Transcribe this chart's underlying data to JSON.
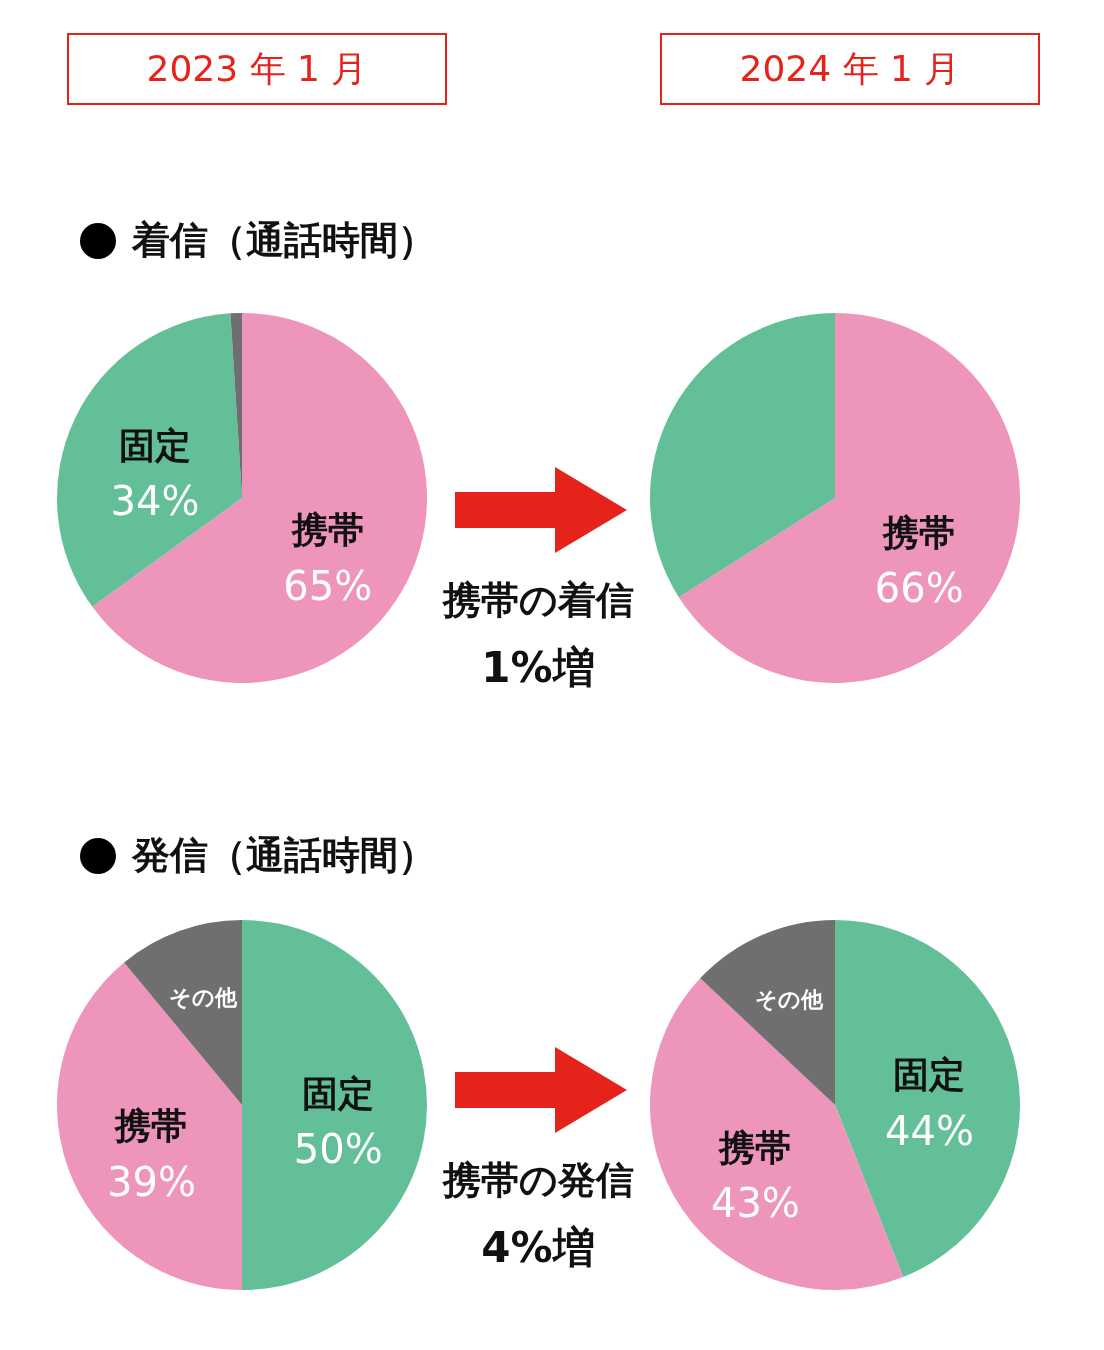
{
  "chart_data": [
    {
      "type": "pie",
      "title": "2023 年 1 月",
      "subtitle": "着信（通話時間）",
      "categories": [
        "携帯",
        "固定",
        null
      ],
      "values": [
        65,
        34,
        1
      ],
      "colors": [
        "#ee95bb",
        "#62bf98",
        "#6f6f6f"
      ],
      "value_labels": [
        "65%",
        "34%",
        null
      ],
      "legend": false
    },
    {
      "type": "pie",
      "title": "2024 年 1 月",
      "categories": [
        "携帯",
        null
      ],
      "values": [
        66,
        34
      ],
      "colors": [
        "#ee95bb",
        "#62bf98"
      ],
      "value_labels": [
        "66%",
        null
      ],
      "legend": false,
      "annotations": [
        "携帯の着信",
        "1%増"
      ]
    },
    {
      "type": "pie",
      "subtitle": "発信（通話時間）",
      "categories": [
        "固定",
        "携帯",
        "その他"
      ],
      "values": [
        50,
        39,
        11
      ],
      "colors": [
        "#62bf98",
        "#ee95bb",
        "#6f6f6f"
      ],
      "value_labels": [
        "50%",
        "39%",
        null
      ],
      "legend": false
    },
    {
      "type": "pie",
      "categories": [
        "固定",
        "携帯",
        "その他"
      ],
      "values": [
        44,
        43,
        13
      ],
      "colors": [
        "#62bf98",
        "#ee95bb",
        "#6f6f6f"
      ],
      "value_labels": [
        "44%",
        "43%",
        null
      ],
      "legend": false,
      "annotations": [
        "携帯の発信",
        "4%増"
      ]
    }
  ]
}
